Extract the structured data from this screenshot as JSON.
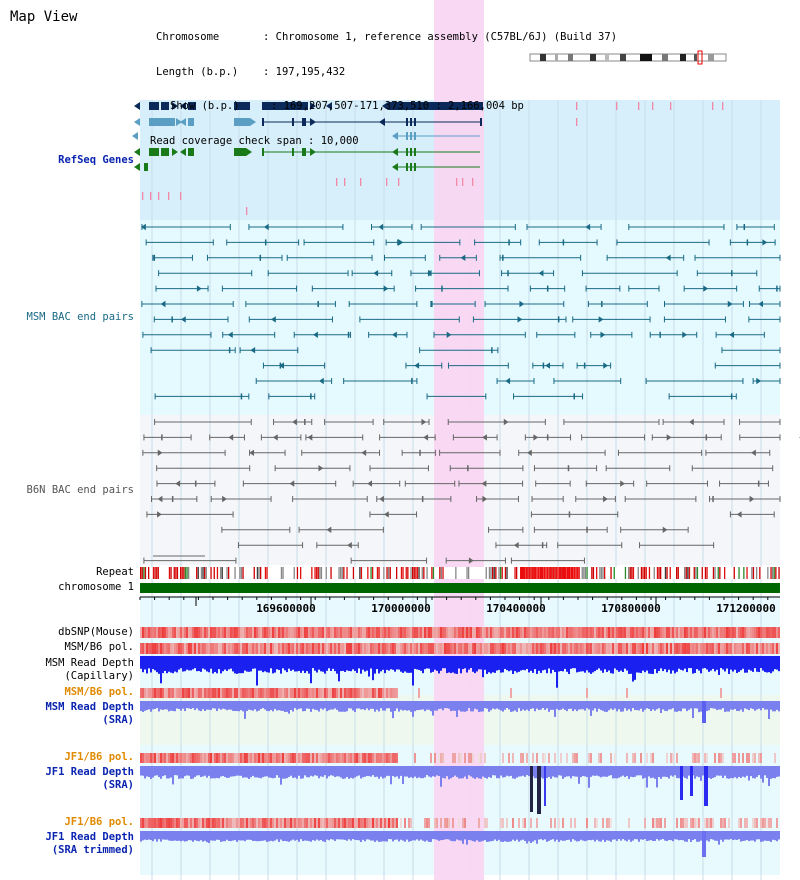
{
  "title": "Map View",
  "info": {
    "chromosome_key": "Chromosome",
    "chromosome_value": "Chromosome 1, reference assembly (C57BL/6J) (Build 37)",
    "length_key": "Length (b.p.)",
    "length_value": "197,195,432",
    "show_key": "Show (b.p.)",
    "show_value": "169,207,507-171,373,510 : 2,166,004 bp",
    "coverage_key": "Read coverage check span",
    "coverage_value": "10,000"
  },
  "tracks": {
    "refseq": "RefSeq Genes",
    "msm_bac": "MSM BAC end pairs",
    "b6n_bac": "B6N BAC end pairs",
    "repeat": "Repeat",
    "chromosome": "chromosome 1",
    "dbsnp": "dbSNP(Mouse)",
    "msm_b6_pol_1": "MSM/B6 pol.",
    "msm_depth_cap_1": "MSM Read Depth",
    "msm_depth_cap_2": "(Capillary)",
    "msm_b6_pol_2": "MSM/B6 pol.",
    "msm_depth_sra_1": "MSM Read Depth",
    "msm_depth_sra_2": "(SRA)",
    "jf1_b6_pol_1": "JF1/B6 pol.",
    "jf1_depth_sra_1": "JF1 Read Depth",
    "jf1_depth_sra_2": "(SRA)",
    "jf1_b6_pol_2": "JF1/B6 pol.",
    "jf1_depth_trim_1": "JF1 Read Depth",
    "jf1_depth_trim_2": "(SRA trimmed)"
  },
  "axis": {
    "ticks": [
      "169600000",
      "170000000",
      "170400000",
      "170800000",
      "171200000"
    ]
  },
  "colors": {
    "refseq_bg": "#d7effb",
    "msm_bg": "#e4faff",
    "b6n_bg": "#f4f6fa",
    "highlight": "#f9d6f2",
    "chromosome": "#006600",
    "gene_navy": "#0b2a5a",
    "gene_light": "#5a9ec4",
    "gene_green": "#1a7a1a",
    "bac_teal": "#1a6a85",
    "bac_grey": "#666666",
    "depth_blue": "#1a20f0",
    "depth_light": "#7a80ee",
    "pol_red": "#ee3030"
  }
}
